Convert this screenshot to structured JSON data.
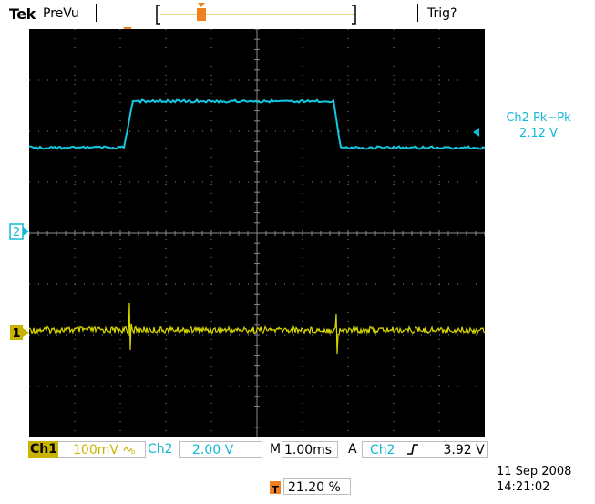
{
  "header": {
    "brand": "Tek",
    "mode": "PreVu",
    "trigger_status": "Trig?"
  },
  "channels": {
    "ch1": {
      "tag": "Ch1",
      "marker": "1",
      "scale": "100mV",
      "coupling_icon": "bandwidth-limit-icon",
      "color": "#d8d800"
    },
    "ch2": {
      "tag": "Ch2",
      "marker": "2",
      "scale": "2.00 V",
      "color": "#12c8e0"
    }
  },
  "timebase": {
    "tag": "M",
    "scale": "1.00ms"
  },
  "trigger": {
    "tag": "A",
    "source": "Ch2",
    "slope_icon": "rising-edge-icon",
    "level": "3.92 V",
    "marker": "T",
    "position": "21.20 %",
    "color": "#f08020"
  },
  "measurement": {
    "label": "Ch2 Pk−Pk",
    "value": "2.12 V"
  },
  "datetime": {
    "date": "11 Sep  2008",
    "time": "14:21:02"
  }
}
